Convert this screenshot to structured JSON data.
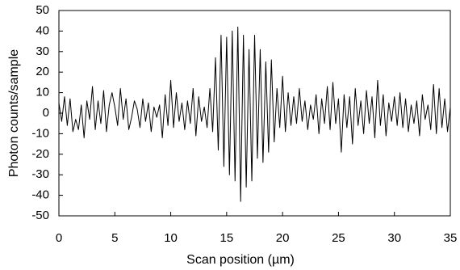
{
  "chart_data": {
    "type": "line",
    "x_label": "Scan position (µm)",
    "y_label": "Photon counts/sample",
    "xlim": [
      0,
      35
    ],
    "xticks": [
      0,
      5,
      10,
      15,
      20,
      25,
      30,
      35
    ],
    "ylim": [
      -50,
      50
    ],
    "yticks": [
      -50,
      -40,
      -30,
      -20,
      -10,
      0,
      10,
      20,
      30,
      40,
      50
    ],
    "grid": false,
    "x": [
      0,
      0.25,
      0.5,
      0.75,
      1,
      1.25,
      1.5,
      1.75,
      2,
      2.25,
      2.5,
      2.75,
      3,
      3.25,
      3.5,
      3.75,
      4,
      4.25,
      4.5,
      4.75,
      5,
      5.25,
      5.5,
      5.75,
      6,
      6.25,
      6.5,
      6.75,
      7,
      7.25,
      7.5,
      7.75,
      8,
      8.25,
      8.5,
      8.75,
      9,
      9.25,
      9.5,
      9.75,
      10,
      10.25,
      10.5,
      10.75,
      11,
      11.25,
      11.5,
      11.75,
      12,
      12.25,
      12.5,
      12.75,
      13,
      13.25,
      13.5,
      13.75,
      14,
      14.25,
      14.5,
      14.75,
      15,
      15.25,
      15.5,
      15.75,
      16,
      16.25,
      16.5,
      16.75,
      17,
      17.25,
      17.5,
      17.75,
      18,
      18.25,
      18.5,
      18.75,
      19,
      19.25,
      19.5,
      19.75,
      20,
      20.25,
      20.5,
      20.75,
      21,
      21.25,
      21.5,
      21.75,
      22,
      22.25,
      22.5,
      22.75,
      23,
      23.25,
      23.5,
      23.75,
      24,
      24.25,
      24.5,
      24.75,
      25,
      25.25,
      25.5,
      25.75,
      26,
      26.25,
      26.5,
      26.75,
      27,
      27.25,
      27.5,
      27.75,
      28,
      28.25,
      28.5,
      28.75,
      29,
      29.25,
      29.5,
      29.75,
      30,
      30.25,
      30.5,
      30.75,
      31,
      31.25,
      31.5,
      31.75,
      32,
      32.25,
      32.5,
      32.75,
      33,
      33.25,
      33.5,
      33.75,
      34,
      34.25,
      34.5,
      34.75,
      35
    ],
    "series": [
      {
        "color": "#000000",
        "values": [
          5,
          -4,
          8,
          -6,
          7,
          -9,
          -3,
          -8,
          4,
          -12,
          6,
          -3,
          13,
          -8,
          6,
          -5,
          11,
          -9,
          4,
          10,
          3,
          -6,
          12,
          -3,
          7,
          -8,
          -2,
          6,
          2,
          -7,
          7,
          -4,
          5,
          -9,
          3,
          -2,
          4,
          -12,
          9,
          -6,
          16,
          -7,
          10,
          -4,
          5,
          -8,
          6,
          -5,
          12,
          -11,
          8,
          -4,
          3,
          -7,
          12,
          -9,
          27,
          -18,
          38,
          -26,
          37,
          -30,
          40,
          -33,
          42,
          -43,
          38,
          -36,
          31,
          -33,
          38,
          -22,
          31,
          -24,
          25,
          -19,
          26,
          -14,
          12,
          -7,
          18,
          -9,
          10,
          -6,
          8,
          -5,
          12,
          -4,
          6,
          -8,
          4,
          -3,
          9,
          -10,
          7,
          -5,
          13,
          -8,
          15,
          -5,
          7,
          -19,
          9,
          -7,
          8,
          -15,
          12,
          -6,
          6,
          -10,
          11,
          -5,
          8,
          -12,
          16,
          -6,
          9,
          -11,
          5,
          -4,
          8,
          -6,
          10,
          -7,
          7,
          -9,
          4,
          -5,
          6,
          -11,
          9,
          -3,
          4,
          -8,
          14,
          -10,
          12,
          -7,
          7,
          -9,
          3
        ]
      }
    ]
  }
}
